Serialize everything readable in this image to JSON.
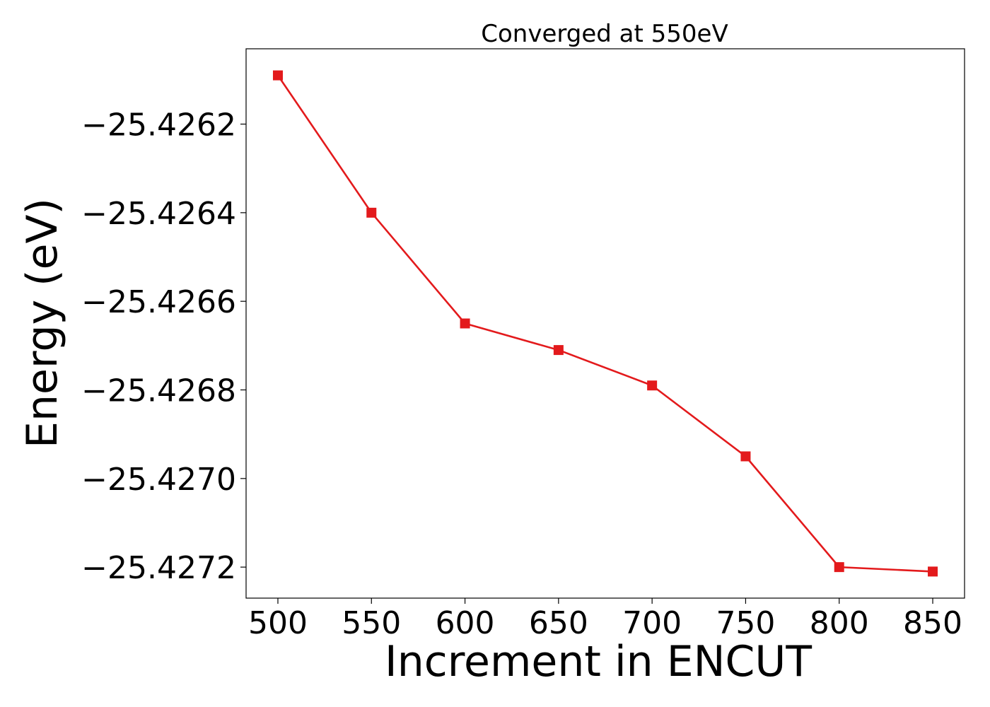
{
  "chart_data": {
    "type": "line",
    "title": "Converged at 550eV",
    "xlabel": "Increment in ENCUT",
    "ylabel": "Energy (eV)",
    "x": [
      500,
      550,
      600,
      650,
      700,
      750,
      800,
      850
    ],
    "series": [
      {
        "values": [
          -25.42609,
          -25.4264,
          -25.42665,
          -25.42671,
          -25.42679,
          -25.42695,
          -25.4272,
          -25.42721
        ],
        "color": "#e31a1c",
        "marker": "square"
      }
    ],
    "xlim": [
      483,
      867
    ],
    "ylim": [
      -25.42727,
      -25.42603
    ],
    "xticks": [
      500,
      550,
      600,
      650,
      700,
      750,
      800,
      850
    ],
    "xtick_labels": [
      "500",
      "550",
      "600",
      "650",
      "700",
      "750",
      "800",
      "850"
    ],
    "yticks": [
      -25.4262,
      -25.4264,
      -25.4266,
      -25.4268,
      -25.427,
      -25.4272
    ],
    "ytick_labels": [
      "−25.4262",
      "−25.4264",
      "−25.4266",
      "−25.4268",
      "−25.4270",
      "−25.4272"
    ],
    "grid": false,
    "legend": false
  }
}
